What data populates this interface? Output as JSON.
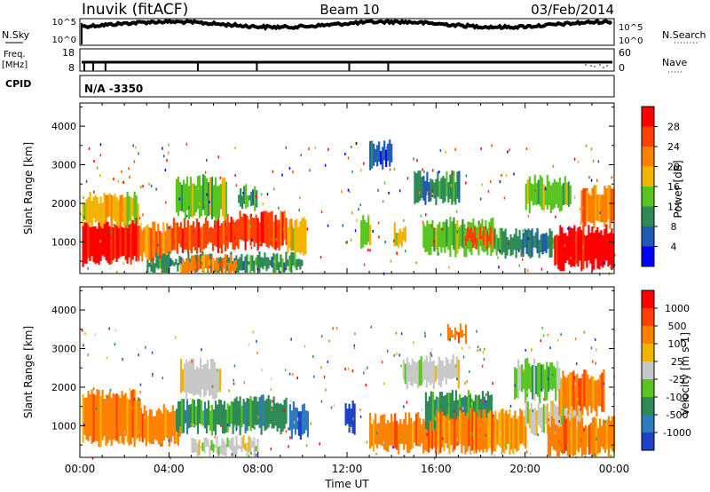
{
  "header": {
    "station": "Inuvik (fitACF)",
    "beam": "Beam 10",
    "date": "03/Feb/2014"
  },
  "top_panels": {
    "nsky": {
      "label": "N.Sky",
      "tick_top": "10^5",
      "tick_bottom": "10^0",
      "right_label": "N.Search",
      "right_tick_top": "10^5",
      "right_tick_bottom": "10^0"
    },
    "freq": {
      "label_line1": "Freq.",
      "label_line2": "[MHz]",
      "tick_top": "18",
      "tick_bottom": "8",
      "right_label": "Nave",
      "right_tick_top": "60",
      "right_tick_bottom": "0",
      "markers_hours": [
        0.2,
        0.6,
        1.15,
        5.3,
        7.95,
        12.1,
        13.85
      ]
    },
    "cpid": {
      "label": "CPID",
      "value": "N/A -3350"
    }
  },
  "chart_data": [
    {
      "type": "heatmap",
      "panel": "power",
      "ylabel": "Slant Range [km]",
      "ylim": [
        180,
        4600
      ],
      "yticks": [
        "1000",
        "2000",
        "3000",
        "4000"
      ],
      "xlim": [
        0,
        24
      ],
      "colorbar": {
        "label": "Power [dB]",
        "ticks": [
          "4",
          "8",
          "12",
          "16",
          "20",
          "24",
          "28"
        ],
        "colors": [
          "#0000ff",
          "#1f5bb4",
          "#2e8b57",
          "#58c41f",
          "#f2b400",
          "#ff7f00",
          "#ff4000",
          "#ff0000"
        ]
      },
      "regions": [
        {
          "x": [
            0.1,
            2.6
          ],
          "y": [
            500,
            1500
          ],
          "level": 7
        },
        {
          "x": [
            0.1,
            2.6
          ],
          "y": [
            1500,
            2150
          ],
          "level": 4
        },
        {
          "x": [
            2.6,
            4.1
          ],
          "y": [
            620,
            1400
          ],
          "level": 5
        },
        {
          "x": [
            4.1,
            6.6
          ],
          "y": [
            850,
            1500
          ],
          "level": 6
        },
        {
          "x": [
            6.6,
            9.3
          ],
          "y": [
            900,
            1650
          ],
          "level": 6
        },
        {
          "x": [
            9.3,
            10.1
          ],
          "y": [
            700,
            1500
          ],
          "level": 4
        },
        {
          "x": [
            4.3,
            6.6
          ],
          "y": [
            1700,
            2600
          ],
          "level": 3
        },
        {
          "x": [
            7.1,
            7.9
          ],
          "y": [
            1950,
            2350
          ],
          "level": 2
        },
        {
          "x": [
            12.6,
            13.0
          ],
          "y": [
            900,
            1550
          ],
          "level": 3
        },
        {
          "x": [
            14.1,
            14.6
          ],
          "y": [
            900,
            1350
          ],
          "level": 4
        },
        {
          "x": [
            15.4,
            18.6
          ],
          "y": [
            750,
            1500
          ],
          "level": 3
        },
        {
          "x": [
            17.3,
            18.6
          ],
          "y": [
            950,
            1250
          ],
          "level": 6
        },
        {
          "x": [
            18.6,
            21.3
          ],
          "y": [
            700,
            1200
          ],
          "level": 2
        },
        {
          "x": [
            21.3,
            24.0
          ],
          "y": [
            400,
            1300
          ],
          "level": 7
        },
        {
          "x": [
            20.0,
            22.0
          ],
          "y": [
            1900,
            2600
          ],
          "level": 3
        },
        {
          "x": [
            22.5,
            24.0
          ],
          "y": [
            1450,
            2350
          ],
          "level": 5
        },
        {
          "x": [
            15.0,
            17.0
          ],
          "y": [
            2100,
            2700
          ],
          "level": 2
        },
        {
          "x": [
            13.0,
            14.0
          ],
          "y": [
            2950,
            3500
          ],
          "level": 1
        },
        {
          "x": [
            3.0,
            10.0
          ],
          "y": [
            250,
            600
          ],
          "level": 2
        },
        {
          "x": [
            4.5,
            7.0
          ],
          "y": [
            250,
            550
          ],
          "level": 5
        }
      ]
    },
    {
      "type": "heatmap",
      "panel": "velocity",
      "ylabel": "Slant Range [km]",
      "xlabel": "Time UT",
      "ylim": [
        180,
        4600
      ],
      "yticks": [
        "1000",
        "2000",
        "3000",
        "4000"
      ],
      "xlim": [
        0,
        24
      ],
      "xticks": [
        "00:00",
        "04:00",
        "08:00",
        "12:00",
        "16:00",
        "20:00",
        "00:00"
      ],
      "colorbar": {
        "label": "Velocity [m s-1]",
        "ticks": [
          "1000",
          "500",
          "100",
          "25",
          "-25",
          "-100",
          "-500",
          "-1000"
        ],
        "colors": [
          "#1f40c8",
          "#2d7bc0",
          "#2e8b57",
          "#58c41f",
          "#c8c8c8",
          "#f2b400",
          "#ff7f00",
          "#ff4000",
          "#ff0000"
        ]
      },
      "regions": [
        {
          "x": [
            0.1,
            2.7
          ],
          "y": [
            600,
            1800
          ],
          "level": 6
        },
        {
          "x": [
            2.7,
            4.5
          ],
          "y": [
            600,
            1400
          ],
          "level": 6
        },
        {
          "x": [
            4.3,
            6.6
          ],
          "y": [
            900,
            1550
          ],
          "level": 2
        },
        {
          "x": [
            6.6,
            9.3
          ],
          "y": [
            900,
            1650
          ],
          "level": 2
        },
        {
          "x": [
            9.4,
            10.2
          ],
          "y": [
            800,
            1500
          ],
          "level": 1
        },
        {
          "x": [
            4.5,
            6.3
          ],
          "y": [
            1800,
            2600
          ],
          "level": 4
        },
        {
          "x": [
            11.9,
            12.3
          ],
          "y": [
            900,
            1500
          ],
          "level": 0
        },
        {
          "x": [
            13.0,
            16.0
          ],
          "y": [
            400,
            1200
          ],
          "level": 6
        },
        {
          "x": [
            15.5,
            18.5
          ],
          "y": [
            1000,
            1800
          ],
          "level": 2
        },
        {
          "x": [
            14.5,
            17.0
          ],
          "y": [
            2100,
            2700
          ],
          "level": 4
        },
        {
          "x": [
            16.0,
            20.0
          ],
          "y": [
            400,
            1300
          ],
          "level": 6
        },
        {
          "x": [
            20.0,
            22.5
          ],
          "y": [
            900,
            1500
          ],
          "level": 4
        },
        {
          "x": [
            21.0,
            24.0
          ],
          "y": [
            300,
            1100
          ],
          "level": 6
        },
        {
          "x": [
            21.5,
            23.5
          ],
          "y": [
            1400,
            2300
          ],
          "level": 6
        },
        {
          "x": [
            19.5,
            21.5
          ],
          "y": [
            1800,
            2600
          ],
          "level": 3
        },
        {
          "x": [
            5.0,
            8.0
          ],
          "y": [
            300,
            600
          ],
          "level": 4
        },
        {
          "x": [
            16.5,
            17.3
          ],
          "y": [
            3200,
            3500
          ],
          "level": 6
        }
      ]
    }
  ]
}
